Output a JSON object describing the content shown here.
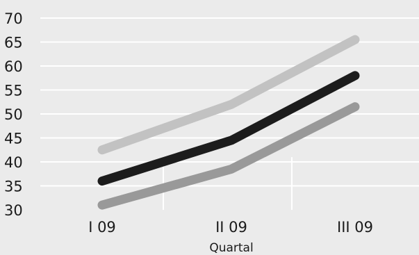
{
  "chart_data": {
    "type": "line",
    "categories": [
      "I 09",
      "II 09",
      "III 09"
    ],
    "xlabel": "Quartal",
    "ylabel": "",
    "ylim": [
      30,
      70
    ],
    "yticks": [
      30,
      35,
      40,
      45,
      50,
      55,
      60,
      65,
      70
    ],
    "grid": true,
    "series": [
      {
        "color": "#c2c2c2",
        "values": [
          42.5,
          52,
          65.5
        ]
      },
      {
        "color": "#1c1c1c",
        "values": [
          36,
          44.5,
          58
        ]
      },
      {
        "color": "#999999",
        "values": [
          31,
          38.5,
          51.5
        ]
      }
    ]
  }
}
